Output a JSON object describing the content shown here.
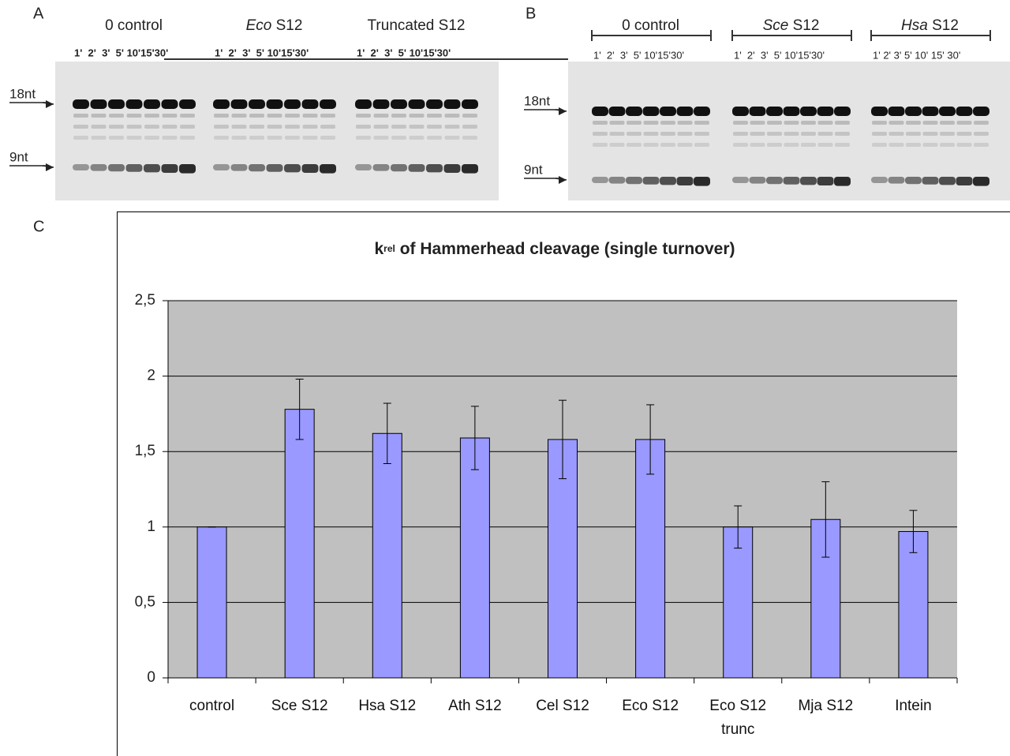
{
  "panels": {
    "a": "A",
    "b": "B",
    "c": "C"
  },
  "gel_a": {
    "groups": [
      {
        "label": "0 control",
        "times": "1'  2'  3'  5' 10'15'30'"
      },
      {
        "species": "Eco",
        "label": "S12",
        "times": "1'  2'  3'  5' 10'15'30'"
      },
      {
        "label": "Truncated S12",
        "times": "1'  2'  3'  5' 10'15'30'"
      }
    ],
    "marker_18": "18nt",
    "marker_9": "9nt"
  },
  "gel_b": {
    "groups": [
      {
        "label": "0 control",
        "times": "1'  2'  3'  5' 10'15'30'"
      },
      {
        "species": "Sce",
        "label": "S12",
        "times": "1'  2'  3'  5' 10'15'30'"
      },
      {
        "species": "Hsa",
        "label": "S12",
        "times": "1' 2' 3' 5' 10' 15' 30'"
      }
    ],
    "marker_18": "18nt",
    "marker_9": "9nt"
  },
  "chart_data": {
    "type": "bar",
    "title": {
      "main": "k",
      "sub": "rel",
      "rest": " of Hammerhead cleavage (single turnover)"
    },
    "categories": [
      "control",
      "Sce S12",
      "Hsa S12",
      "Ath S12",
      "Cel S12",
      "Eco S12",
      "Eco S12 trunc",
      "Mja S12",
      "Intein"
    ],
    "series": [
      {
        "color": "#9999ff",
        "values": [
          1.0,
          1.78,
          1.62,
          1.59,
          1.58,
          1.58,
          1.0,
          1.05,
          0.97
        ],
        "errors": [
          0.0,
          0.2,
          0.2,
          0.21,
          0.26,
          0.23,
          0.14,
          0.25,
          0.14
        ]
      }
    ],
    "ylim": [
      0,
      2.5
    ],
    "yticks": [
      0,
      {
        "value": 0.5,
        "label": "0,5"
      },
      1,
      {
        "value": 1.5,
        "label": "1,5"
      },
      2,
      {
        "value": 2.5,
        "label": "2,5"
      }
    ],
    "grid": true,
    "plot_background": "#c0c0c0"
  }
}
